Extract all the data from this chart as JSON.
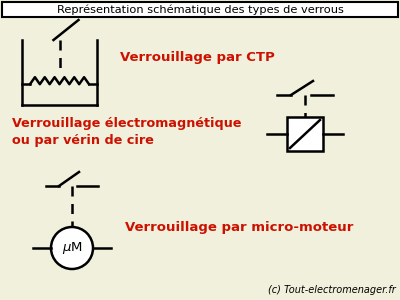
{
  "title": "Représentation schématique des types de verrous",
  "bg_color": "#f0f0dc",
  "text_color_red": "#cc1100",
  "text_color_black": "#000000",
  "label1": "Verrouillage par CTP",
  "label2": "Verrouillage électromagnétique\nou par vérin de cire",
  "label3": "Verrouillage par micro-moteur",
  "watermark": "(c) Tout-electromenager.fr"
}
